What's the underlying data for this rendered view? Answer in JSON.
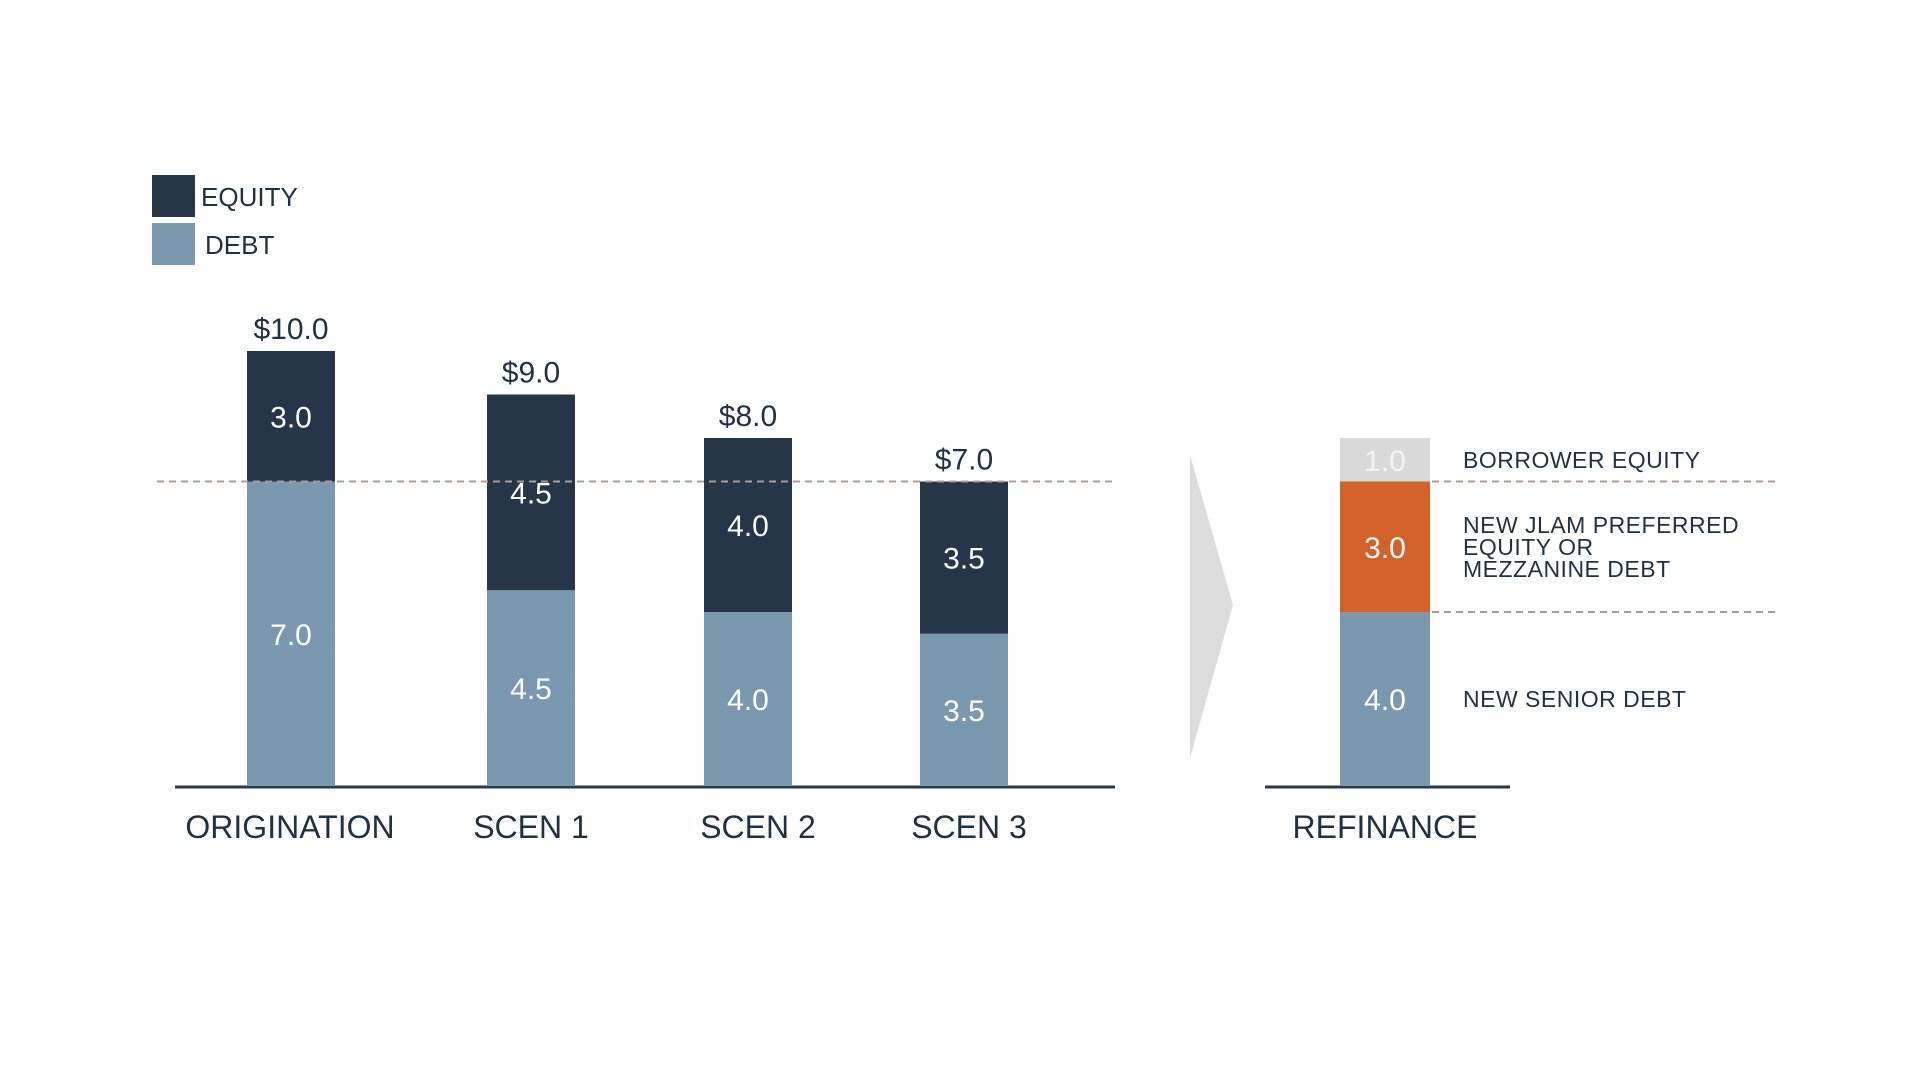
{
  "chart_data": [
    {
      "type": "bar",
      "stacked": true,
      "categories": [
        "ORIGINATION",
        "SCEN 1",
        "SCEN 2",
        "SCEN 3"
      ],
      "series": [
        {
          "name": "DEBT",
          "values": [
            7.0,
            4.5,
            4.0,
            3.5
          ],
          "color": "#7a98ae"
        },
        {
          "name": "EQUITY",
          "values": [
            3.0,
            4.5,
            4.0,
            3.5
          ],
          "color": "#243647"
        }
      ],
      "segment_labels": {
        "DEBT": [
          "7.0",
          "4.5",
          "4.0",
          "3.5"
        ],
        "EQUITY": [
          "3.0",
          "4.5",
          "4.0",
          "3.5"
        ]
      },
      "totals": [
        "$10.0",
        "$9.0",
        "$8.0",
        "$7.0"
      ],
      "total_values": [
        10.0,
        9.0,
        8.0,
        7.0
      ],
      "reference_line": 7.0,
      "legend": {
        "position": "top-left",
        "entries": [
          {
            "label": "EQUITY",
            "color": "#243647"
          },
          {
            "label": "DEBT",
            "color": "#7a98ae"
          }
        ]
      },
      "ylim": [
        0,
        10
      ]
    },
    {
      "type": "bar",
      "stacked": true,
      "categories": [
        "REFINANCE"
      ],
      "series": [
        {
          "name": "NEW SENIOR DEBT",
          "values": [
            4.0
          ],
          "color": "#7a98ae"
        },
        {
          "name": "NEW JLAM PREFERRED EQUITY OR MEZZANINE DEBT",
          "values": [
            3.0
          ],
          "color": "#d0622a"
        },
        {
          "name": "BORROWER EQUITY",
          "values": [
            1.0
          ],
          "color": "#d9d9d9"
        }
      ],
      "segment_labels": [
        "4.0",
        "3.0",
        "1.0"
      ],
      "annotations": [
        {
          "lines": [
            "NEW SENIOR DEBT"
          ]
        },
        {
          "lines": [
            "NEW JLAM PREFERRED",
            "EQUITY OR",
            "MEZZANINE DEBT"
          ]
        },
        {
          "lines": [
            "BORROWER EQUITY"
          ]
        }
      ],
      "reference_lines": [
        4.0,
        7.0
      ],
      "ylim": [
        0,
        10
      ]
    }
  ],
  "colors": {
    "text": "#1f3142",
    "axis": "#2b3a4a",
    "dashed_line": "#b09a98",
    "arrow": "#dcdcdc"
  }
}
